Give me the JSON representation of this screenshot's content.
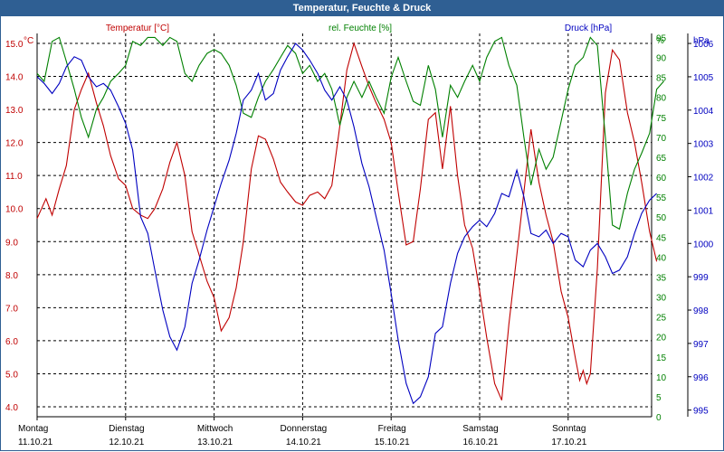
{
  "chart_data": {
    "type": "line",
    "title": "Temperatur, Feuchte & Druck",
    "axes": {
      "temperature": {
        "label": "Temperatur [°C]",
        "unit": "°C",
        "ylim": [
          3.7,
          15.3
        ],
        "ticks": [
          4.0,
          5.0,
          6.0,
          7.0,
          8.0,
          9.0,
          10.0,
          11.0,
          12.0,
          13.0,
          14.0,
          15.0
        ],
        "color": "#c00000"
      },
      "humidity": {
        "label": "rel. Feuchte [%]",
        "unit": "%",
        "ylim": [
          0,
          96
        ],
        "ticks": [
          0,
          5,
          10,
          15,
          20,
          25,
          30,
          35,
          40,
          45,
          50,
          55,
          60,
          65,
          70,
          75,
          80,
          85,
          90,
          95
        ],
        "color": "#008000"
      },
      "pressure": {
        "label": "Druck [hPa]",
        "unit": "hPa",
        "ylim": [
          994.8,
          1006.3
        ],
        "ticks": [
          995,
          996,
          997,
          998,
          999,
          1000,
          1001,
          1002,
          1003,
          1004,
          1005,
          1006
        ],
        "color": "#0000c0"
      }
    },
    "x_days": [
      {
        "day": "Montag",
        "date": "11.10.21"
      },
      {
        "day": "Dienstag",
        "date": "12.10.21"
      },
      {
        "day": "Mittwoch",
        "date": "13.10.21"
      },
      {
        "day": "Donnerstag",
        "date": "14.10.21"
      },
      {
        "day": "Freitag",
        "date": "15.10.21"
      },
      {
        "day": "Samstag",
        "date": "16.10.21"
      },
      {
        "day": "Sonntag",
        "date": "17.10.21"
      }
    ],
    "x_range_days": [
      0,
      7.1
    ],
    "series": [
      {
        "name": "Temperatur",
        "axis": "temperature",
        "color": "#c00000",
        "points": [
          [
            0,
            9.7
          ],
          [
            0.1,
            10.3
          ],
          [
            0.17,
            9.8
          ],
          [
            0.25,
            10.6
          ],
          [
            0.33,
            11.3
          ],
          [
            0.42,
            13.0
          ],
          [
            0.5,
            13.6
          ],
          [
            0.58,
            14.1
          ],
          [
            0.67,
            13.2
          ],
          [
            0.75,
            12.5
          ],
          [
            0.83,
            11.6
          ],
          [
            0.92,
            10.9
          ],
          [
            1.0,
            10.7
          ],
          [
            1.08,
            10.0
          ],
          [
            1.17,
            9.8
          ],
          [
            1.25,
            9.7
          ],
          [
            1.33,
            10.0
          ],
          [
            1.42,
            10.6
          ],
          [
            1.5,
            11.4
          ],
          [
            1.58,
            12.0
          ],
          [
            1.67,
            11.0
          ],
          [
            1.75,
            9.3
          ],
          [
            1.83,
            8.6
          ],
          [
            1.92,
            7.8
          ],
          [
            2.0,
            7.3
          ],
          [
            2.08,
            6.3
          ],
          [
            2.17,
            6.7
          ],
          [
            2.25,
            7.6
          ],
          [
            2.33,
            9.0
          ],
          [
            2.42,
            11.2
          ],
          [
            2.5,
            12.2
          ],
          [
            2.58,
            12.1
          ],
          [
            2.67,
            11.5
          ],
          [
            2.75,
            10.8
          ],
          [
            2.83,
            10.5
          ],
          [
            2.92,
            10.2
          ],
          [
            3.0,
            10.1
          ],
          [
            3.08,
            10.4
          ],
          [
            3.17,
            10.5
          ],
          [
            3.25,
            10.3
          ],
          [
            3.33,
            10.7
          ],
          [
            3.42,
            12.5
          ],
          [
            3.5,
            14.2
          ],
          [
            3.58,
            15.0
          ],
          [
            3.67,
            14.3
          ],
          [
            3.75,
            13.7
          ],
          [
            3.83,
            13.2
          ],
          [
            3.92,
            12.7
          ],
          [
            4.0,
            12.0
          ],
          [
            4.08,
            10.5
          ],
          [
            4.17,
            8.9
          ],
          [
            4.25,
            9.0
          ],
          [
            4.33,
            10.6
          ],
          [
            4.42,
            12.7
          ],
          [
            4.5,
            12.9
          ],
          [
            4.58,
            11.2
          ],
          [
            4.67,
            13.1
          ],
          [
            4.75,
            11.0
          ],
          [
            4.83,
            9.5
          ],
          [
            4.92,
            8.8
          ],
          [
            5.0,
            7.5
          ],
          [
            5.08,
            6.1
          ],
          [
            5.17,
            4.7
          ],
          [
            5.25,
            4.2
          ],
          [
            5.33,
            6.5
          ],
          [
            5.42,
            8.6
          ],
          [
            5.5,
            10.5
          ],
          [
            5.58,
            12.4
          ],
          [
            5.67,
            10.8
          ],
          [
            5.75,
            9.8
          ],
          [
            5.83,
            9.0
          ],
          [
            5.92,
            7.5
          ],
          [
            6.0,
            6.7
          ],
          [
            6.08,
            5.5
          ],
          [
            6.13,
            4.8
          ],
          [
            6.17,
            5.1
          ],
          [
            6.21,
            4.7
          ],
          [
            6.25,
            5.0
          ],
          [
            6.33,
            8.2
          ],
          [
            6.42,
            13.5
          ],
          [
            6.5,
            14.8
          ],
          [
            6.58,
            14.5
          ],
          [
            6.67,
            12.9
          ],
          [
            6.75,
            12.0
          ],
          [
            6.83,
            10.8
          ],
          [
            6.92,
            9.3
          ],
          [
            7.0,
            8.4
          ]
        ]
      },
      {
        "name": "rel. Feuchte",
        "axis": "humidity",
        "color": "#008000",
        "points": [
          [
            0,
            86
          ],
          [
            0.08,
            84
          ],
          [
            0.17,
            94
          ],
          [
            0.25,
            95
          ],
          [
            0.33,
            89
          ],
          [
            0.42,
            82
          ],
          [
            0.5,
            75
          ],
          [
            0.58,
            70
          ],
          [
            0.67,
            77
          ],
          [
            0.75,
            80
          ],
          [
            0.83,
            84
          ],
          [
            0.92,
            86
          ],
          [
            1.0,
            88
          ],
          [
            1.08,
            94
          ],
          [
            1.17,
            93
          ],
          [
            1.25,
            95
          ],
          [
            1.33,
            95
          ],
          [
            1.42,
            93
          ],
          [
            1.5,
            95
          ],
          [
            1.58,
            94
          ],
          [
            1.67,
            86
          ],
          [
            1.75,
            84
          ],
          [
            1.83,
            88
          ],
          [
            1.92,
            91
          ],
          [
            2.0,
            92
          ],
          [
            2.08,
            91
          ],
          [
            2.17,
            88
          ],
          [
            2.25,
            83
          ],
          [
            2.33,
            76
          ],
          [
            2.42,
            75
          ],
          [
            2.5,
            80
          ],
          [
            2.58,
            84
          ],
          [
            2.67,
            87
          ],
          [
            2.75,
            90
          ],
          [
            2.83,
            93
          ],
          [
            2.92,
            91
          ],
          [
            3.0,
            86
          ],
          [
            3.08,
            88
          ],
          [
            3.17,
            84
          ],
          [
            3.25,
            86
          ],
          [
            3.33,
            82
          ],
          [
            3.42,
            73
          ],
          [
            3.5,
            80
          ],
          [
            3.58,
            84
          ],
          [
            3.67,
            80
          ],
          [
            3.75,
            84
          ],
          [
            3.83,
            80
          ],
          [
            3.92,
            76
          ],
          [
            4.0,
            85
          ],
          [
            4.08,
            90
          ],
          [
            4.17,
            84
          ],
          [
            4.25,
            79
          ],
          [
            4.33,
            78
          ],
          [
            4.42,
            88
          ],
          [
            4.5,
            82
          ],
          [
            4.58,
            70
          ],
          [
            4.67,
            83
          ],
          [
            4.75,
            80
          ],
          [
            4.83,
            84
          ],
          [
            4.92,
            88
          ],
          [
            5.0,
            84
          ],
          [
            5.08,
            90
          ],
          [
            5.17,
            94
          ],
          [
            5.25,
            95
          ],
          [
            5.33,
            88
          ],
          [
            5.42,
            83
          ],
          [
            5.5,
            70
          ],
          [
            5.58,
            58
          ],
          [
            5.67,
            67
          ],
          [
            5.75,
            62
          ],
          [
            5.83,
            65
          ],
          [
            5.92,
            74
          ],
          [
            6.0,
            82
          ],
          [
            6.08,
            88
          ],
          [
            6.17,
            90
          ],
          [
            6.25,
            95
          ],
          [
            6.33,
            93
          ],
          [
            6.42,
            70
          ],
          [
            6.5,
            48
          ],
          [
            6.58,
            47
          ],
          [
            6.67,
            56
          ],
          [
            6.75,
            62
          ],
          [
            6.83,
            66
          ],
          [
            6.92,
            71
          ],
          [
            7.0,
            82
          ],
          [
            7.08,
            84
          ]
        ]
      },
      {
        "name": "Druck",
        "axis": "pressure",
        "color": "#0000c0",
        "points": [
          [
            0,
            1005.0
          ],
          [
            0.08,
            1004.8
          ],
          [
            0.17,
            1004.5
          ],
          [
            0.25,
            1004.8
          ],
          [
            0.33,
            1005.3
          ],
          [
            0.42,
            1005.6
          ],
          [
            0.5,
            1005.5
          ],
          [
            0.58,
            1005.0
          ],
          [
            0.67,
            1004.7
          ],
          [
            0.75,
            1004.8
          ],
          [
            0.83,
            1004.6
          ],
          [
            0.92,
            1004.1
          ],
          [
            1.0,
            1003.6
          ],
          [
            1.08,
            1002.8
          ],
          [
            1.17,
            1000.8
          ],
          [
            1.25,
            1000.3
          ],
          [
            1.33,
            999.2
          ],
          [
            1.42,
            998.0
          ],
          [
            1.5,
            997.2
          ],
          [
            1.58,
            996.8
          ],
          [
            1.67,
            997.5
          ],
          [
            1.75,
            998.8
          ],
          [
            1.83,
            999.5
          ],
          [
            1.92,
            1000.4
          ],
          [
            2.0,
            1001.1
          ],
          [
            2.08,
            1001.8
          ],
          [
            2.17,
            1002.5
          ],
          [
            2.25,
            1003.3
          ],
          [
            2.33,
            1004.3
          ],
          [
            2.42,
            1004.6
          ],
          [
            2.5,
            1005.1
          ],
          [
            2.58,
            1004.3
          ],
          [
            2.67,
            1004.5
          ],
          [
            2.75,
            1005.2
          ],
          [
            2.83,
            1005.6
          ],
          [
            2.92,
            1006.0
          ],
          [
            3.0,
            1005.8
          ],
          [
            3.08,
            1005.5
          ],
          [
            3.17,
            1005.1
          ],
          [
            3.25,
            1004.6
          ],
          [
            3.33,
            1004.3
          ],
          [
            3.42,
            1004.7
          ],
          [
            3.5,
            1004.3
          ],
          [
            3.58,
            1003.5
          ],
          [
            3.67,
            1002.4
          ],
          [
            3.75,
            1001.7
          ],
          [
            3.83,
            1000.8
          ],
          [
            3.92,
            999.8
          ],
          [
            4.0,
            998.5
          ],
          [
            4.08,
            997.1
          ],
          [
            4.17,
            995.8
          ],
          [
            4.25,
            995.2
          ],
          [
            4.33,
            995.4
          ],
          [
            4.42,
            996.0
          ],
          [
            4.5,
            997.3
          ],
          [
            4.58,
            997.5
          ],
          [
            4.67,
            998.8
          ],
          [
            4.75,
            999.7
          ],
          [
            4.83,
            1000.2
          ],
          [
            4.92,
            1000.5
          ],
          [
            5.0,
            1000.7
          ],
          [
            5.08,
            1000.5
          ],
          [
            5.17,
            1000.9
          ],
          [
            5.25,
            1001.5
          ],
          [
            5.33,
            1001.4
          ],
          [
            5.42,
            1002.2
          ],
          [
            5.5,
            1001.4
          ],
          [
            5.58,
            1000.3
          ],
          [
            5.67,
            1000.2
          ],
          [
            5.75,
            1000.4
          ],
          [
            5.83,
            1000.0
          ],
          [
            5.92,
            1000.3
          ],
          [
            6.0,
            1000.2
          ],
          [
            6.08,
            999.5
          ],
          [
            6.17,
            999.3
          ],
          [
            6.25,
            999.8
          ],
          [
            6.33,
            1000.0
          ],
          [
            6.42,
            999.6
          ],
          [
            6.5,
            999.1
          ],
          [
            6.58,
            999.2
          ],
          [
            6.67,
            999.6
          ],
          [
            6.75,
            1000.3
          ],
          [
            6.83,
            1000.9
          ],
          [
            6.92,
            1001.3
          ],
          [
            7.0,
            1001.5
          ]
        ]
      }
    ]
  }
}
